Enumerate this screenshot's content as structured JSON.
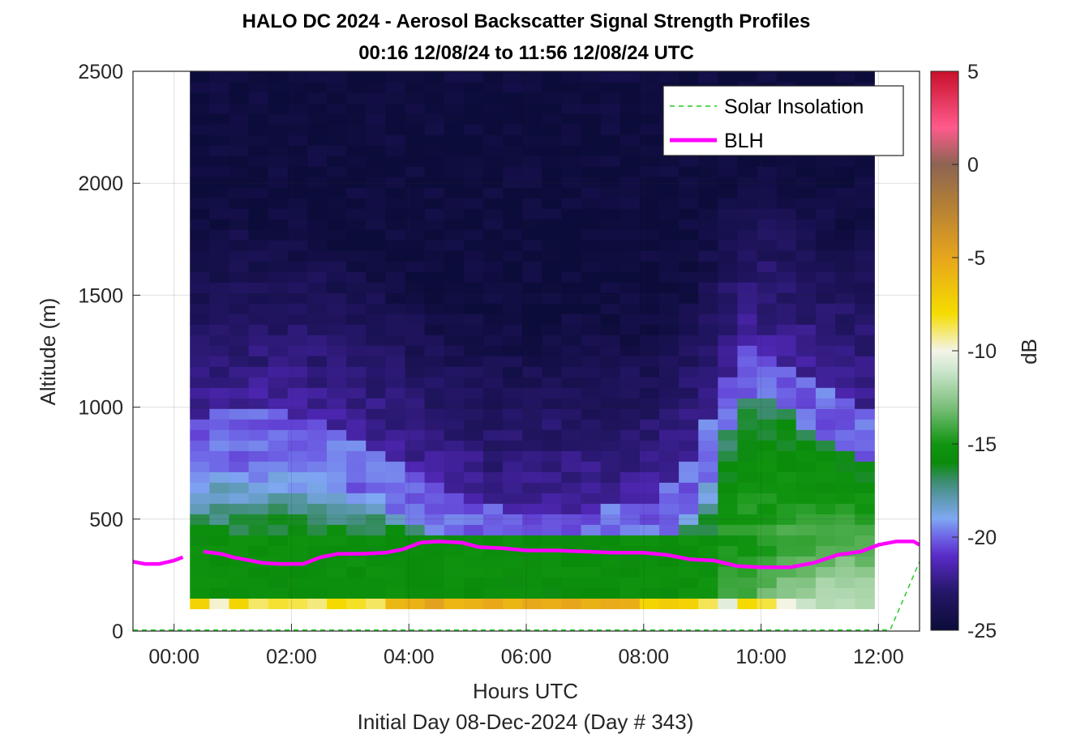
{
  "chart_data": {
    "type": "heatmap",
    "title": "HALO DC 2024 - Aerosol Backscatter Signal Strength Profiles",
    "subtitle": "00:16 12/08/24 to 11:56 12/08/24  UTC",
    "xlabel": "Hours UTC",
    "footer": "Initial Day 08-Dec-2024 (Day # 343)",
    "ylabel": "Altitude (m)",
    "colorbar_label": "dB",
    "x_ticks": [
      "00:00",
      "02:00",
      "04:00",
      "06:00",
      "08:00",
      "10:00",
      "12:00"
    ],
    "x_tick_hours": [
      0,
      2,
      4,
      6,
      8,
      10,
      12
    ],
    "y_ticks": [
      "0",
      "500",
      "1000",
      "1500",
      "2000",
      "2500"
    ],
    "y_tick_values": [
      0,
      500,
      1000,
      1500,
      2000,
      2500
    ],
    "colorbar_ticks": [
      "5",
      "0",
      "-5",
      "-10",
      "-15",
      "-20",
      "-25"
    ],
    "colorbar_tick_values": [
      5,
      0,
      -5,
      -10,
      -15,
      -20,
      -25
    ],
    "xlim": [
      -0.7,
      12.7
    ],
    "ylim": [
      0,
      2500
    ],
    "clim": [
      -25,
      5
    ],
    "grid": true,
    "legend_position": "top-right",
    "legend": [
      {
        "label": "Solar Insolation",
        "style": "dashed",
        "color": "#22cc22"
      },
      {
        "label": "BLH",
        "style": "solid",
        "color": "#ff00ff"
      }
    ],
    "heatmap_x_range_hours": [
      0.27,
      11.93
    ],
    "heatmap_y_range_m": [
      100,
      2500
    ],
    "blh": {
      "color": "#ff00ff",
      "segments": [
        {
          "hours": [
            -0.7,
            -0.5,
            -0.25,
            0.0,
            0.15
          ],
          "altitude_m": [
            310,
            300,
            300,
            315,
            330
          ]
        },
        {
          "hours": [
            0.5,
            0.8,
            1.0,
            1.2,
            1.5,
            1.8,
            2.2,
            2.5,
            2.8,
            3.2,
            3.6,
            3.9,
            4.2,
            4.5,
            4.9,
            5.2,
            5.6,
            6.0,
            6.5,
            7.0,
            7.5,
            8.0,
            8.4,
            8.8,
            9.2,
            9.6,
            10.0,
            10.5,
            10.9,
            11.3,
            11.7,
            12.0,
            12.3,
            12.6,
            12.7
          ],
          "altitude_m": [
            355,
            345,
            330,
            320,
            305,
            300,
            300,
            330,
            345,
            345,
            350,
            365,
            395,
            400,
            395,
            375,
            370,
            360,
            360,
            355,
            350,
            350,
            340,
            320,
            315,
            290,
            285,
            285,
            305,
            340,
            355,
            385,
            400,
            400,
            385
          ]
        }
      ]
    },
    "solar_insolation": {
      "color": "#22cc22",
      "hours": [
        -0.7,
        12.2,
        12.7
      ],
      "altitude_m": [
        5,
        5,
        310
      ]
    },
    "colormap_stops": [
      {
        "db": -25,
        "color": "#0c0c3a"
      },
      {
        "db": -23,
        "color": "#241666"
      },
      {
        "db": -21,
        "color": "#5a2bc8"
      },
      {
        "db": -20,
        "color": "#6e64e6"
      },
      {
        "db": -19,
        "color": "#7fa8f2"
      },
      {
        "db": -18,
        "color": "#5f9ab6"
      },
      {
        "db": -17,
        "color": "#3d8c70"
      },
      {
        "db": -16,
        "color": "#0a8c0a"
      },
      {
        "db": -15,
        "color": "#119511"
      },
      {
        "db": -13,
        "color": "#7cbf7c"
      },
      {
        "db": -11,
        "color": "#cfe7cf"
      },
      {
        "db": -10,
        "color": "#f4f4e8"
      },
      {
        "db": -8,
        "color": "#f5dc00"
      },
      {
        "db": -5,
        "color": "#e7a51c"
      },
      {
        "db": -2,
        "color": "#b07d38"
      },
      {
        "db": 0,
        "color": "#8c6452"
      },
      {
        "db": 2,
        "color": "#ff5a8c"
      },
      {
        "db": 5,
        "color": "#c8102a"
      }
    ]
  }
}
